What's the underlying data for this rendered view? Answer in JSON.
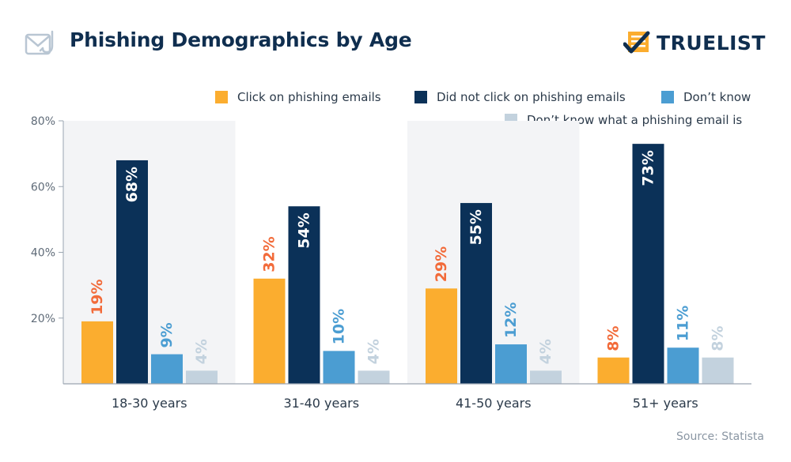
{
  "header": {
    "title": "Phishing Demographics by Age",
    "brand_name": "TRUELIST",
    "icon": "phishing-envelope-hook-icon",
    "brand_icon": "checklist-check-icon"
  },
  "source": "Source: Statista",
  "colors": {
    "click": "#fbad2f",
    "not_click": "#0b3158",
    "dont_know": "#4b9dd2",
    "dont_know_what": "#c3d2de",
    "click_label": "#f26b3a",
    "band": "#f3f4f6",
    "title": "#0f2e4f"
  },
  "chart_data": {
    "type": "bar",
    "title": "Phishing Demographics by Age",
    "categories": [
      "18-30 years",
      "31-40 years",
      "41-50 years",
      "51+ years"
    ],
    "series": [
      {
        "name": "Click on phishing emails",
        "values": [
          19,
          32,
          29,
          8
        ],
        "labels": [
          "19%",
          "32%",
          "29%",
          "8%"
        ]
      },
      {
        "name": "Did not click on phishing emails",
        "values": [
          68,
          54,
          55,
          73
        ],
        "labels": [
          "68%",
          "54%",
          "55%",
          "73%"
        ]
      },
      {
        "name": "Don’t know",
        "values": [
          9,
          10,
          12,
          11
        ],
        "labels": [
          "9%",
          "10%",
          "12%",
          "11%"
        ]
      },
      {
        "name": "Don’t know what a phishing email is",
        "values": [
          4,
          4,
          4,
          8
        ],
        "labels": [
          "4%",
          "4%",
          "4%",
          "8%"
        ]
      }
    ],
    "ylim": [
      0,
      80
    ],
    "yticks": [
      {
        "value": 20,
        "label": "20%"
      },
      {
        "value": 40,
        "label": "40%"
      },
      {
        "value": 60,
        "label": "60%"
      },
      {
        "value": 80,
        "label": "80%"
      }
    ],
    "xlabel": "",
    "ylabel": "",
    "grid": false,
    "legend_position": "top-right"
  }
}
